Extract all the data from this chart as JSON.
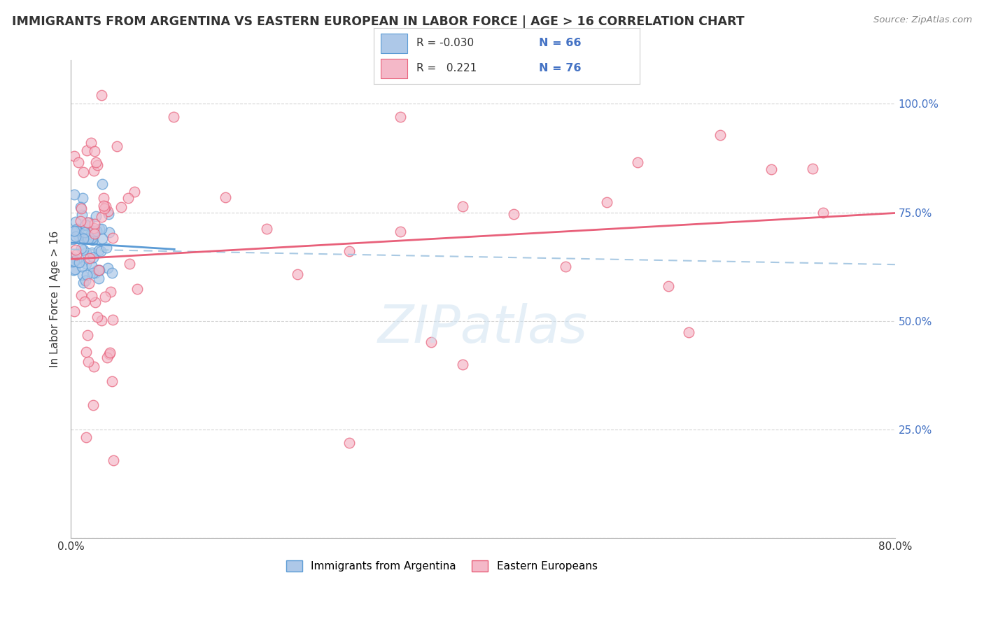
{
  "title": "IMMIGRANTS FROM ARGENTINA VS EASTERN EUROPEAN IN LABOR FORCE | AGE > 16 CORRELATION CHART",
  "source": "Source: ZipAtlas.com",
  "ylabel": "In Labor Force | Age > 16",
  "watermark": "ZIPatlas",
  "color_blue_fill": "#adc8e8",
  "color_blue_edge": "#5b9bd5",
  "color_pink_fill": "#f4b8c8",
  "color_pink_edge": "#e8607a",
  "color_blue_line": "#5b9bd5",
  "color_pink_line": "#e8607a",
  "color_blue_dash": "#a0c4e0",
  "xlim": [
    0.0,
    0.8
  ],
  "ylim": [
    0.0,
    1.1
  ],
  "background_color": "#ffffff",
  "grid_color": "#d0d0d0"
}
